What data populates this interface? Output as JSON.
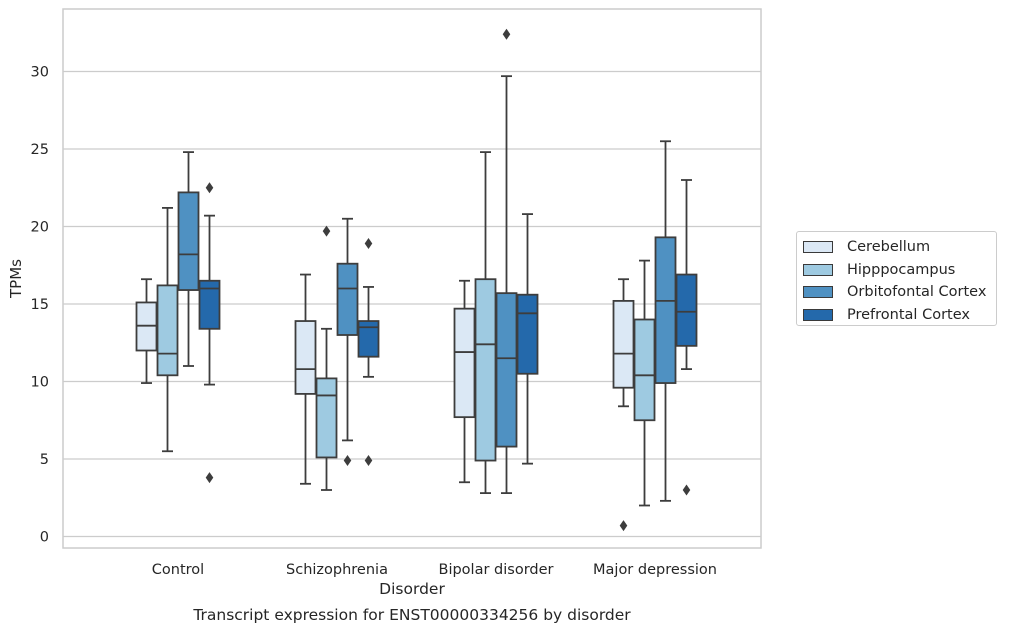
{
  "chart_data": {
    "type": "box",
    "title": "Transcript expression for ENST00000334256 by disorder",
    "xlabel": "Disorder",
    "ylabel": "TPMs",
    "ylim": [
      -0.8,
      34
    ],
    "yticks": [
      0,
      5,
      10,
      15,
      20,
      25,
      30
    ],
    "grid": "horizontal",
    "legend_position": "right",
    "categories": [
      "Control",
      "Schizophrenia",
      "Bipolar disorder",
      "Major depression"
    ],
    "series": [
      {
        "name": "Cerebellum",
        "color": "#dbe8f5",
        "boxes": [
          {
            "whisker_low": 9.9,
            "q1": 12.0,
            "median": 13.6,
            "q3": 15.1,
            "whisker_high": 16.6,
            "outliers": []
          },
          {
            "whisker_low": 3.4,
            "q1": 9.2,
            "median": 10.8,
            "q3": 13.9,
            "whisker_high": 16.9,
            "outliers": []
          },
          {
            "whisker_low": 3.5,
            "q1": 7.7,
            "median": 11.9,
            "q3": 14.7,
            "whisker_high": 16.5,
            "outliers": []
          },
          {
            "whisker_low": 8.4,
            "q1": 9.6,
            "median": 11.8,
            "q3": 15.2,
            "whisker_high": 16.6,
            "outliers": [
              0.7
            ]
          }
        ]
      },
      {
        "name": "Hipppocampus",
        "color": "#9ecae1",
        "boxes": [
          {
            "whisker_low": 5.5,
            "q1": 10.4,
            "median": 11.8,
            "q3": 16.2,
            "whisker_high": 21.2,
            "outliers": []
          },
          {
            "whisker_low": 3.0,
            "q1": 5.1,
            "median": 9.1,
            "q3": 10.2,
            "whisker_high": 13.4,
            "outliers": [
              19.7
            ]
          },
          {
            "whisker_low": 2.8,
            "q1": 4.9,
            "median": 12.4,
            "q3": 16.6,
            "whisker_high": 24.8,
            "outliers": []
          },
          {
            "whisker_low": 2.0,
            "q1": 7.5,
            "median": 10.4,
            "q3": 14.0,
            "whisker_high": 17.8,
            "outliers": []
          }
        ]
      },
      {
        "name": "Orbitofontal Cortex",
        "color": "#4f91c2",
        "boxes": [
          {
            "whisker_low": 11.0,
            "q1": 15.9,
            "median": 18.2,
            "q3": 22.2,
            "whisker_high": 24.8,
            "outliers": []
          },
          {
            "whisker_low": 6.2,
            "q1": 13.0,
            "median": 16.0,
            "q3": 17.6,
            "whisker_high": 20.5,
            "outliers": [
              4.9
            ]
          },
          {
            "whisker_low": 2.8,
            "q1": 5.8,
            "median": 11.5,
            "q3": 15.7,
            "whisker_high": 29.7,
            "outliers": [
              32.4
            ]
          },
          {
            "whisker_low": 2.3,
            "q1": 9.9,
            "median": 15.2,
            "q3": 19.3,
            "whisker_high": 25.5,
            "outliers": []
          }
        ]
      },
      {
        "name": "Prefrontal Cortex",
        "color": "#2469ab",
        "boxes": [
          {
            "whisker_low": 9.8,
            "q1": 13.4,
            "median": 16.0,
            "q3": 16.5,
            "whisker_high": 20.7,
            "outliers": [
              22.5,
              3.8
            ]
          },
          {
            "whisker_low": 10.3,
            "q1": 11.6,
            "median": 13.5,
            "q3": 13.9,
            "whisker_high": 16.1,
            "outliers": [
              18.9,
              4.9
            ]
          },
          {
            "whisker_low": 4.7,
            "q1": 10.5,
            "median": 14.4,
            "q3": 15.6,
            "whisker_high": 20.8,
            "outliers": []
          },
          {
            "whisker_low": 10.8,
            "q1": 12.3,
            "median": 14.5,
            "q3": 16.9,
            "whisker_high": 23.0,
            "outliers": [
              3.0
            ]
          }
        ]
      }
    ]
  }
}
